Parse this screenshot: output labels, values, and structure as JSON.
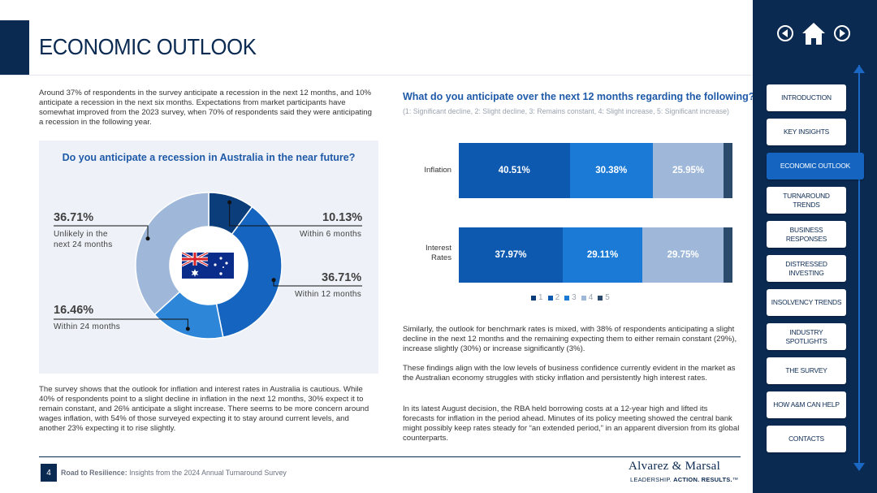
{
  "page": {
    "title": "ECONOMIC OUTLOOK",
    "intro": "Around 37% of respondents in the survey anticipate a recession in the next 12 months, and 10% anticipate a recession in the next six months. Expectations from market participants have somewhat improved from the 2023 survey, when 70% of respondents said they were anticipating a recession in the following year.",
    "bottom_text": "The survey shows that the outlook for inflation and interest rates in Australia is cautious. While 40% of respondents point to a slight decline in inflation in the next 12 months, 30% expect it to remain constant, and 26% anticipate a slight increase. There seems to be more concern around wages inflation, with 54% of those surveyed expecting it to stay around current levels, and another 23% expecting it to rise slightly.",
    "para1": "Similarly, the outlook for benchmark rates is mixed, with 38% of respondents anticipating a slight decline in the next 12 months and the remaining expecting them to either remain constant (29%), increase slightly (30%) or increase significantly (3%).",
    "para2": "These findings align with the low levels of business confidence currently evident in the market as the Australian economy struggles with sticky inflation and persistently high interest rates.",
    "para3": "In its latest August decision, the RBA held borrowing costs at a 12-year high and lifted its forecasts for inflation in the period ahead. Minutes of its policy meeting showed the central bank might possibly keep rates steady for “an extended period,” in an apparent diversion from its global counterparts."
  },
  "donut": {
    "title": "Do you anticipate a recession in Australia in the near future?",
    "callouts": {
      "unlikely": {
        "value": "36.71%",
        "label_line1": "Unlikely in the",
        "label_line2": "next 24 months"
      },
      "within6": {
        "value": "10.13%",
        "label": "Within 6 months"
      },
      "within12": {
        "value": "36.71%",
        "label": "Within 12 months"
      },
      "within24": {
        "value": "16.46%",
        "label": "Within 24 months"
      }
    }
  },
  "chart_data": [
    {
      "type": "pie",
      "title": "Do you anticipate a recession in Australia in the near future?",
      "categories": [
        "Within 6 months",
        "Within 12 months",
        "Within 24 months",
        "Unlikely in the next 24 months"
      ],
      "values": [
        10.13,
        36.71,
        16.46,
        36.71
      ],
      "colors": [
        "#0b3d7a",
        "#1565c0",
        "#2d86d8",
        "#9fb8da"
      ]
    },
    {
      "type": "bar",
      "orientation": "horizontal-stacked",
      "title": "What do you anticipate over the next 12 months regarding the following?",
      "subtitle": "(1: Significant decline, 2: Slight decline, 3: Remains constant, 4: Slight increase, 5: Significant increase)",
      "categories": [
        "Inflation",
        "Interest Rates"
      ],
      "category_lines": [
        [
          "Inflation"
        ],
        [
          "Interest",
          "Rates"
        ]
      ],
      "series": [
        {
          "name": "1",
          "values": [
            0,
            0
          ],
          "color": "#0b3d7a"
        },
        {
          "name": "2",
          "values": [
            40.51,
            37.97
          ],
          "color": "#0d59b0"
        },
        {
          "name": "3",
          "values": [
            30.38,
            29.11
          ],
          "color": "#1a7ad6"
        },
        {
          "name": "4",
          "values": [
            25.95,
            29.75
          ],
          "color": "#9fb8da"
        },
        {
          "name": "5",
          "values": [
            3.16,
            3.17
          ],
          "color": "#2c4a6b"
        }
      ],
      "labels": [
        [
          "40.51%",
          "30.38%",
          "25.95%"
        ],
        [
          "37.97%",
          "29.11%",
          "29.75%"
        ]
      ],
      "legend": "bottom"
    }
  ],
  "footer": {
    "page_number": "4",
    "report_bold": "Road to Resilience:",
    "report_rest": " Insights from the 2024 Annual Turnaround Survey",
    "brand": "Alvarez & Marsal",
    "tagline_a": "LEADERSHIP. ",
    "tagline_b": "ACTION. RESULTS.",
    "tagline_tm": "™"
  },
  "nav": {
    "icons": [
      "previous-icon",
      "home-icon",
      "next-icon"
    ],
    "items": [
      {
        "label": "INTRODUCTION",
        "active": false
      },
      {
        "label": "KEY INSIGHTS",
        "active": false
      },
      {
        "label": "ECONOMIC OUTLOOK",
        "active": true
      },
      {
        "label": "TURNAROUND TRENDS",
        "active": false
      },
      {
        "label": "BUSINESS RESPONSES",
        "active": false
      },
      {
        "label": "DISTRESSED INVESTING",
        "active": false
      },
      {
        "label": "INSOLVENCY TRENDS",
        "active": false
      },
      {
        "label": "INDUSTRY SPOTLIGHTS",
        "active": false
      },
      {
        "label": "THE SURVEY",
        "active": false
      },
      {
        "label": "HOW A&M CAN HELP",
        "active": false
      },
      {
        "label": "CONTACTS",
        "active": false
      }
    ]
  },
  "colors": {
    "navy": "#0b2a52",
    "accent": "#1565c0",
    "title_blue": "#1f5aa8"
  }
}
